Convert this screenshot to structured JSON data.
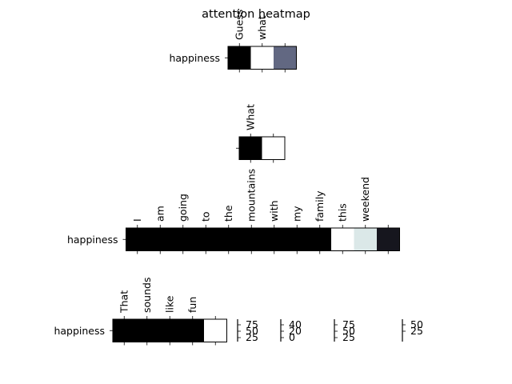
{
  "chart_data": {
    "type": "heatmap",
    "title": "attention heatmap",
    "colormap": "bone",
    "panels": [
      {
        "row_label": "happiness",
        "tokens": [
          "Guess",
          "what",
          ""
        ],
        "values": [
          0.0,
          1.0,
          0.45
        ]
      },
      {
        "row_label": "",
        "tokens": [
          "What",
          ""
        ],
        "values": [
          0.0,
          1.0
        ]
      },
      {
        "row_label": "happiness",
        "tokens": [
          "I",
          "am",
          "going",
          "to",
          "the",
          "mountains",
          "with",
          "my",
          "family",
          "this",
          "weekend",
          ""
        ],
        "values": [
          0.0,
          0.0,
          0.0,
          0.0,
          0.0,
          0.0,
          0.0,
          0.0,
          0.0,
          1.0,
          0.9,
          0.1
        ]
      },
      {
        "row_label": "happiness",
        "tokens": [
          "That",
          "sounds",
          "like",
          "fun",
          ""
        ],
        "values": [
          0.0,
          0.0,
          0.0,
          0.0,
          1.0
        ]
      }
    ],
    "colorbars": [
      {
        "ticks": [
          "75",
          "50",
          "25"
        ]
      },
      {
        "ticks": [
          "40",
          "20",
          "0"
        ]
      },
      {
        "ticks": [
          "75",
          "50",
          "25"
        ]
      },
      {
        "ticks": [
          "50",
          "25"
        ]
      }
    ]
  }
}
